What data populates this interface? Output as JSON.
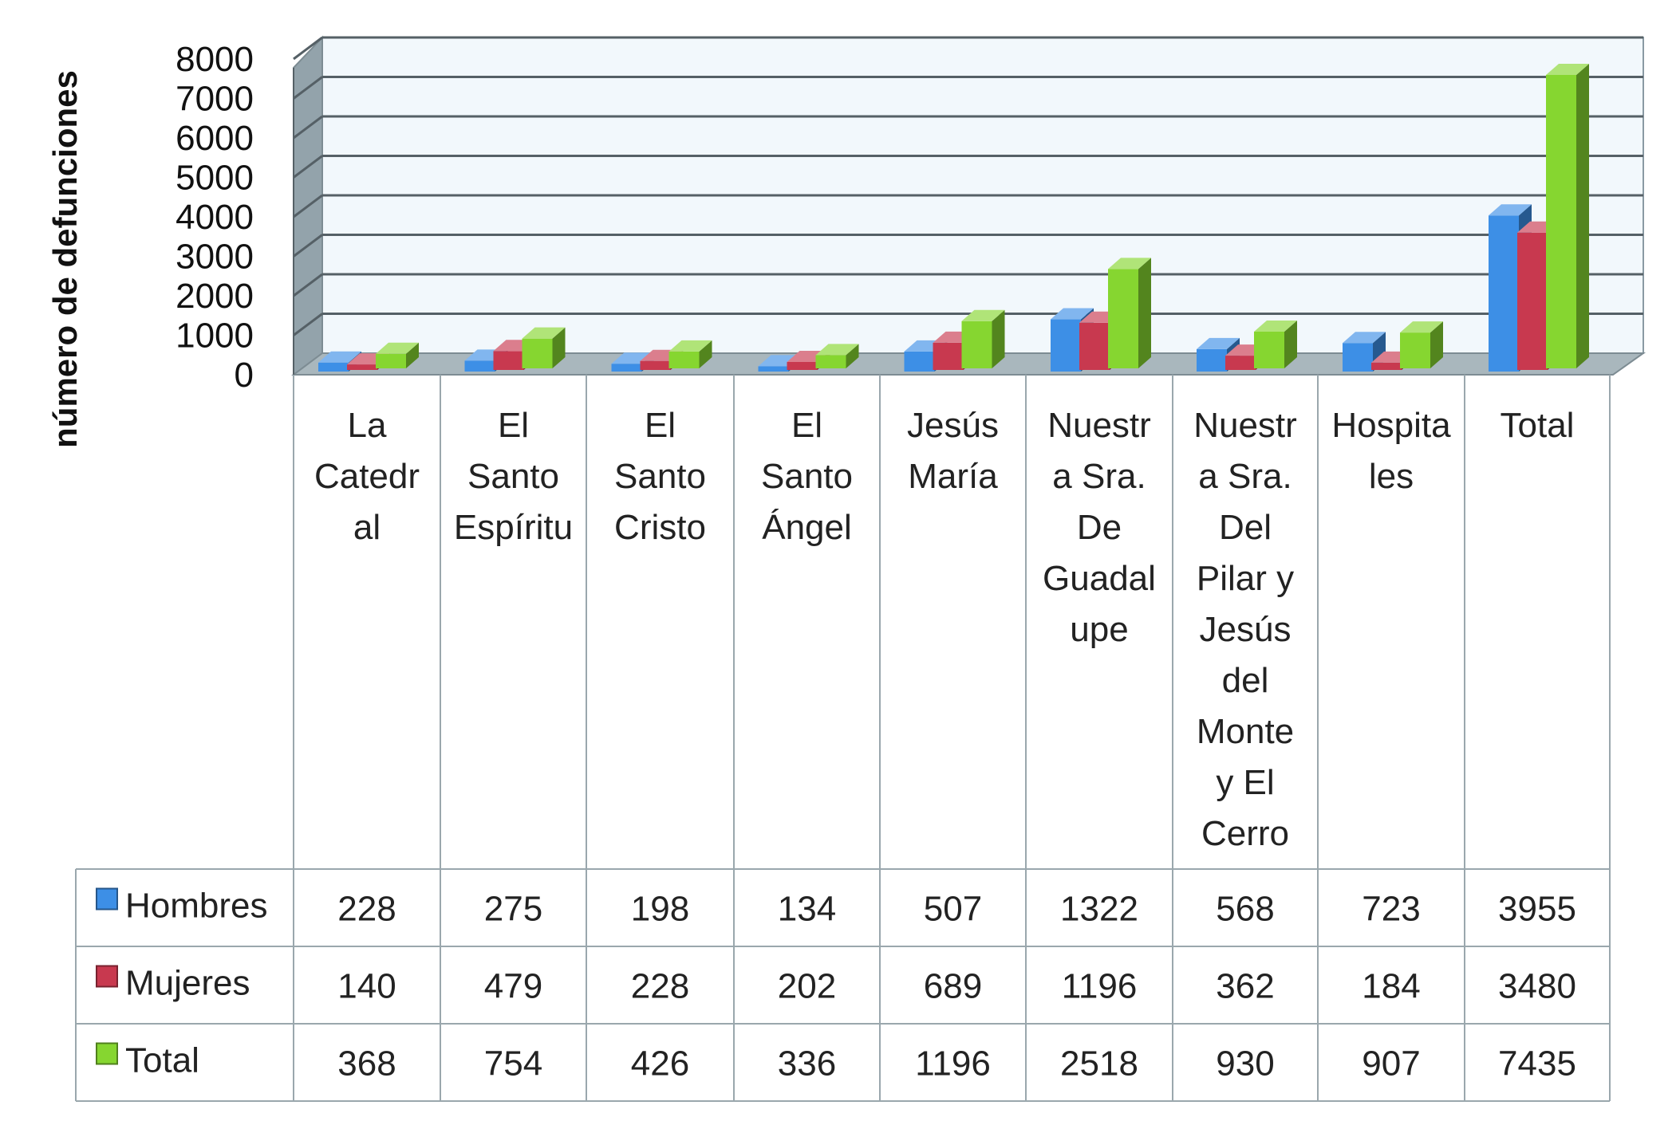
{
  "chart_data": {
    "type": "bar",
    "ylabel": "número de defunciones",
    "ylim": [
      0,
      8000
    ],
    "yticks": [
      0,
      1000,
      2000,
      3000,
      4000,
      5000,
      6000,
      7000,
      8000
    ],
    "grid": true,
    "legend": "data-table-left",
    "categories": [
      "La Catedral",
      "El Santo Espíritu",
      "El Santo Cristo",
      "El Santo Ángel",
      "Jesús María",
      "Nuestra Sra. De Guadalupe",
      "Nuestra Sra. Del Pilar y Jesús del Monte y El Cerro",
      "Hospitales",
      "Total"
    ],
    "category_lines": [
      [
        "La",
        "Catedr",
        "al"
      ],
      [
        "El",
        "Santo",
        "Espíritu"
      ],
      [
        "El",
        "Santo",
        "Cristo"
      ],
      [
        "El",
        "Santo",
        "Ángel"
      ],
      [
        "Jesús",
        "María"
      ],
      [
        "Nuestr",
        "a Sra.",
        "De",
        "Guadal",
        "upe"
      ],
      [
        "Nuestr",
        "a Sra.",
        "Del",
        "Pilar y",
        "Jesús",
        "del",
        "Monte",
        "y El",
        "Cerro"
      ],
      [
        "Hospita",
        "les"
      ],
      [
        "Total"
      ]
    ],
    "series": [
      {
        "name": "Hombres",
        "color": "#3d8fe6",
        "values": [
          228,
          275,
          198,
          134,
          507,
          1322,
          568,
          723,
          3955
        ]
      },
      {
        "name": "Mujeres",
        "color": "#c8394f",
        "values": [
          140,
          479,
          228,
          202,
          689,
          1196,
          362,
          184,
          3480
        ]
      },
      {
        "name": "Total",
        "color": "#86d630",
        "values": [
          368,
          754,
          426,
          336,
          1196,
          2518,
          930,
          907,
          7435
        ]
      }
    ]
  }
}
